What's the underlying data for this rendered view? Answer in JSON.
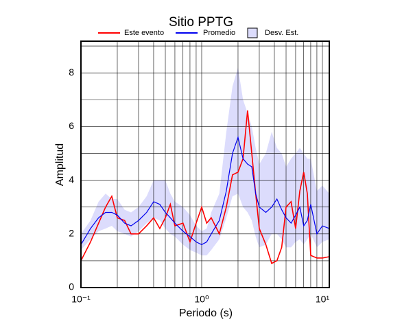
{
  "chart_data": {
    "type": "line",
    "title": "Sitio PPTG",
    "x_label": "Periodo (s)",
    "y_label": "Amplitud",
    "log_x": true,
    "grid": true,
    "x": [
      0.1,
      0.12,
      0.14,
      0.16,
      0.18,
      0.2,
      0.23,
      0.26,
      0.3,
      0.35,
      0.4,
      0.45,
      0.5,
      0.55,
      0.6,
      0.7,
      0.8,
      0.9,
      1.0,
      1.1,
      1.2,
      1.4,
      1.6,
      1.8,
      2.0,
      2.2,
      2.4,
      2.6,
      2.8,
      3.0,
      3.4,
      3.8,
      4.2,
      4.6,
      5,
      5.5,
      6,
      6.5,
      7,
      7.5,
      8,
      9,
      10,
      11.4
    ],
    "series": [
      {
        "name": "Este evento",
        "color": "#ff0000",
        "values": [
          1.0,
          1.7,
          2.4,
          3.0,
          3.4,
          2.6,
          2.5,
          2.0,
          2.0,
          2.3,
          2.6,
          2.2,
          2.6,
          3.1,
          2.3,
          2.4,
          1.7,
          2.4,
          3.0,
          2.4,
          2.6,
          2.0,
          3.0,
          4.2,
          4.3,
          4.8,
          6.6,
          5.0,
          3.5,
          2.2,
          1.6,
          0.9,
          1.0,
          1.5,
          3.0,
          3.2,
          2.2,
          3.6,
          4.3,
          3.5,
          1.2,
          1.1,
          1.1,
          1.15
        ]
      },
      {
        "name": "Promedio",
        "color": "#0000ee",
        "values": [
          1.6,
          2.2,
          2.6,
          2.8,
          2.8,
          2.7,
          2.4,
          2.3,
          2.5,
          2.8,
          3.2,
          3.1,
          2.8,
          2.6,
          2.4,
          2.1,
          1.9,
          1.7,
          1.6,
          1.7,
          2.0,
          2.5,
          3.6,
          5.0,
          5.6,
          4.8,
          4.6,
          4.5,
          3.5,
          3.0,
          2.8,
          3.0,
          3.3,
          2.9,
          2.6,
          2.4,
          2.7,
          3.0,
          2.3,
          2.5,
          3.1,
          2.0,
          2.3,
          2.2
        ]
      }
    ],
    "band": {
      "name": "Desv. Est.",
      "color": "#dcdcfc",
      "lower": [
        1.4,
        1.8,
        2.1,
        2.2,
        2.3,
        2.1,
        2.0,
        1.9,
        2.1,
        2.4,
        2.6,
        2.5,
        2.2,
        2.0,
        1.9,
        1.6,
        1.4,
        1.3,
        1.2,
        1.2,
        1.4,
        1.8,
        2.6,
        3.4,
        3.5,
        3.0,
        2.8,
        2.5,
        1.9,
        1.5,
        1.6,
        2.0,
        2.0,
        1.8,
        1.5,
        1.5,
        1.7,
        1.8,
        1.6,
        1.8,
        2.0,
        1.5,
        1.7,
        1.8
      ],
      "upper": [
        2.0,
        2.5,
        3.2,
        3.5,
        3.3,
        3.3,
        2.9,
        2.8,
        3.0,
        3.4,
        4.0,
        4.0,
        4.0,
        3.5,
        3.2,
        3.0,
        2.7,
        2.3,
        2.1,
        2.2,
        2.8,
        3.5,
        5.8,
        7.5,
        8.2,
        7.0,
        6.5,
        6.0,
        5.2,
        4.6,
        5.0,
        5.8,
        5.2,
        5.0,
        4.5,
        4.8,
        5.0,
        5.2,
        5.0,
        4.8,
        4.8,
        3.6,
        3.8,
        3.5
      ]
    },
    "xlim": [
      0.1,
      11.4
    ],
    "ylim": [
      0,
      9.18
    ],
    "xticks": [
      {
        "value": 0.1,
        "label": "10⁻¹"
      },
      {
        "value": 1,
        "label": "10⁰"
      },
      {
        "value": 10,
        "label": "10¹"
      }
    ],
    "xminor": [
      0.2,
      0.3,
      0.4,
      0.5,
      0.6,
      0.7,
      0.8,
      0.9,
      2,
      3,
      4,
      5,
      6,
      7,
      8,
      9
    ],
    "yticks": [
      0,
      2,
      4,
      6,
      8
    ],
    "yminor": [
      1,
      3,
      5,
      7,
      9
    ]
  }
}
